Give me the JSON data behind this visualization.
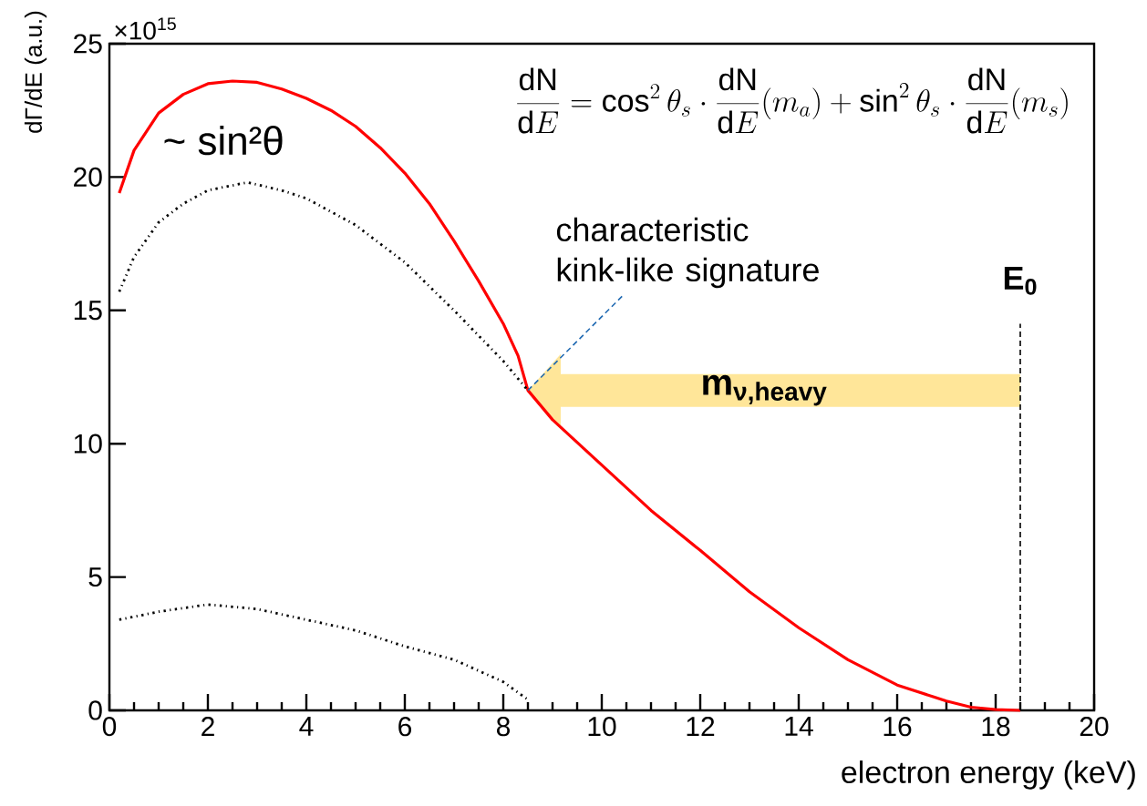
{
  "chart_data": {
    "type": "line",
    "xlabel": "electron energy (keV)",
    "ylabel": "dΓ/dE (a.u.)",
    "xlim": [
      0,
      20
    ],
    "ylim": [
      0,
      25
    ],
    "xticks": [
      0,
      2,
      4,
      6,
      8,
      10,
      12,
      14,
      16,
      18,
      20
    ],
    "yticks": [
      0,
      5,
      10,
      15,
      20,
      25
    ],
    "grid": false,
    "marker": "none",
    "series": [
      {
        "color": "#ff0000",
        "line_style": "solid",
        "x": [
          0.2,
          0.5,
          1,
          1.5,
          2,
          2.5,
          3,
          3.5,
          4,
          4.5,
          5,
          5.5,
          6,
          6.5,
          7,
          7.5,
          8,
          8.3,
          8.5,
          9,
          10,
          11,
          12,
          13,
          14,
          15,
          16,
          17,
          17.5,
          18,
          18.5
        ],
        "values": [
          19.4,
          21.0,
          22.4,
          23.1,
          23.5,
          23.6,
          23.55,
          23.3,
          22.95,
          22.5,
          21.9,
          21.1,
          20.15,
          19.0,
          17.6,
          16.1,
          14.5,
          13.3,
          12.0,
          10.9,
          9.2,
          7.5,
          6.0,
          4.45,
          3.1,
          1.9,
          0.95,
          0.35,
          0.12,
          0.03,
          0
        ]
      },
      {
        "color": "#000000",
        "line_style": "dotted",
        "x": [
          0.2,
          0.5,
          1,
          1.5,
          2,
          2.8,
          3.5,
          4,
          5,
          6,
          7,
          8,
          8.5
        ],
        "values": [
          15.7,
          17.0,
          18.3,
          19.0,
          19.5,
          19.8,
          19.5,
          19.2,
          18.2,
          16.8,
          15.0,
          13.1,
          12.0
        ]
      },
      {
        "color": "#000000",
        "line_style": "dotted",
        "x": [
          0.2,
          1,
          2,
          3,
          4,
          5,
          6,
          7,
          8,
          8.5
        ],
        "values": [
          3.4,
          3.7,
          3.97,
          3.8,
          3.4,
          3.0,
          2.4,
          1.9,
          1.07,
          0.4
        ]
      }
    ],
    "ref_lines": [
      {
        "axis": "x",
        "value": 18.5,
        "label": "E$_{0}$",
        "color": "#000000",
        "line_style": "dashed"
      }
    ],
    "annotations": [
      "×10$^{15}$",
      "\\frac{\\mathrm{dN}}{\\mathrm{d}E}=\\cos^2\\theta_s\\cdot\\frac{\\mathrm{dN}}{\\mathrm{d}E}(m_a)+\\sin^2\\theta_s\\cdot\\frac{\\mathrm{dN}}{\\mathrm{d}E}(m_s)",
      "~ sin²θ",
      {
        "text": "characteristic kink-like signature",
        "x": 8.5,
        "y": 12
      },
      "m$_{ν,heavy}$"
    ]
  }
}
